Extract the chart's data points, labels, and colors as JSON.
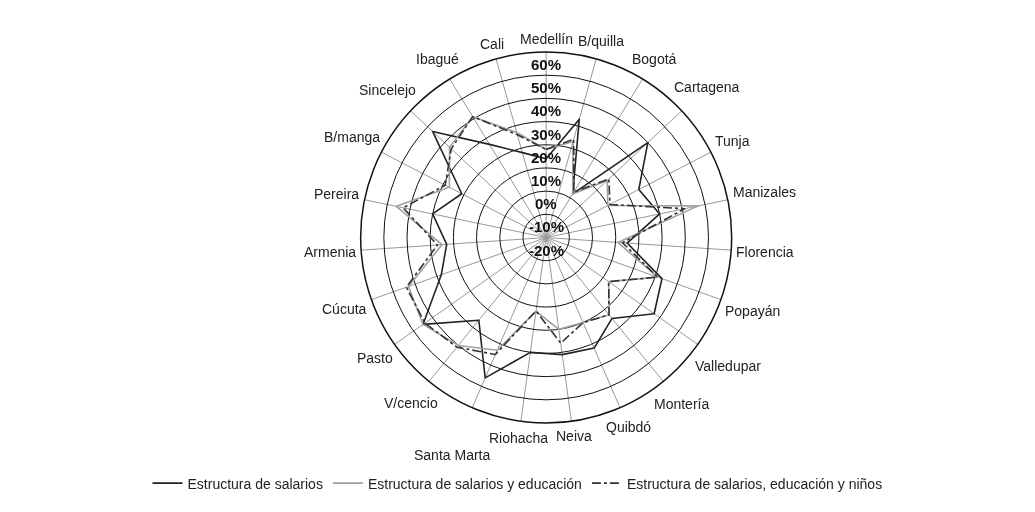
{
  "chart_data": {
    "type": "radar",
    "categories": [
      "Medellín",
      "B/quilla",
      "Bogotá",
      "Cartagena",
      "Tunja",
      "Manizales",
      "Florencia",
      "Popayán",
      "Valledupar",
      "Montería",
      "Quibdó",
      "Neiva",
      "Riohacha",
      "Santa Marta",
      "V/cencio",
      "Pasto",
      "Cúcuta",
      "Armenia",
      "Pereira",
      "B/manga",
      "Sincelejo",
      "Ibagué",
      "Cali"
    ],
    "series": [
      {
        "name": "Estructura de salarios",
        "color": "#222222",
        "line_style": "solid",
        "values": [
          14,
          33,
          2,
          40,
          25,
          30,
          15,
          33,
          37,
          25,
          32,
          31,
          30,
          46,
          26,
          45,
          28,
          23,
          30,
          21,
          47,
          27,
          18
        ]
      },
      {
        "name": "Estructura de salarios y educación",
        "color": "#a0a0a0",
        "line_style": "solid",
        "values": [
          18,
          23,
          2,
          16,
          10,
          47,
          11,
          31,
          13,
          23,
          20,
          20,
          12,
          33,
          40,
          45,
          43,
          25,
          46,
          27,
          37,
          41,
          27
        ]
      },
      {
        "name": "Estructura de salarios, educación y niños",
        "color": "#333333",
        "line_style": "dashed",
        "values": [
          18,
          24,
          3,
          17,
          11,
          41,
          13,
          31,
          13,
          23,
          20,
          26,
          12,
          35,
          41,
          44,
          44,
          27,
          43,
          29,
          36,
          41,
          26
        ]
      }
    ],
    "ylim": [
      -20,
      60
    ],
    "yticks": [
      {
        "value": -20,
        "label": "-20%"
      },
      {
        "value": -10,
        "label": "-10%"
      },
      {
        "value": 0,
        "label": "0%"
      },
      {
        "value": 10,
        "label": "10%"
      },
      {
        "value": 20,
        "label": "20%"
      },
      {
        "value": 30,
        "label": "30%"
      },
      {
        "value": 40,
        "label": "40%"
      },
      {
        "value": 50,
        "label": "50%"
      },
      {
        "value": 60,
        "label": "60%"
      }
    ],
    "grid": true,
    "legend": "bottom",
    "marker": "none"
  }
}
